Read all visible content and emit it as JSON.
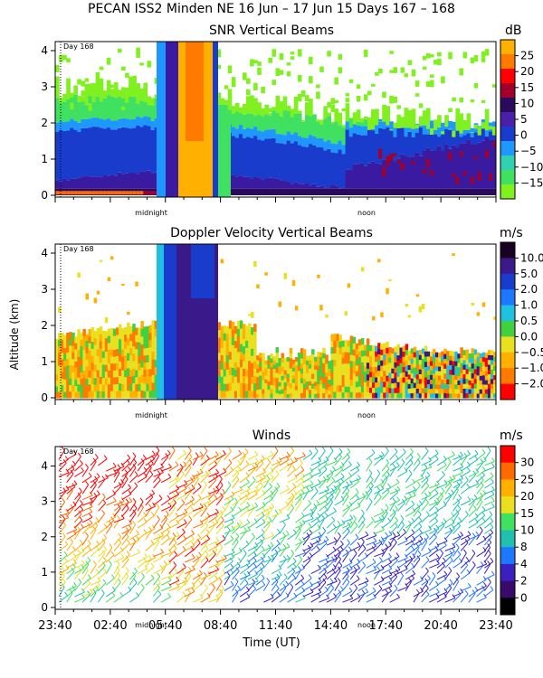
{
  "header": {
    "title": "PECAN ISS2 Minden NE  16 Jun – 17 Jun 15 Days 167 – 168"
  },
  "axes": {
    "ylabel": "Altitude (km)",
    "xlabel": "Time (UT)",
    "ytick_labels": [
      "0",
      "1",
      "2",
      "3",
      "4"
    ],
    "xtick_labels": [
      "23:40",
      "02:40",
      "05:40",
      "08:40",
      "11:40",
      "14:40",
      "17:40",
      "20:40",
      "23:40"
    ],
    "day_marker": "Day 168",
    "midnight_label": "midnight",
    "noon_label": "noon"
  },
  "chart_data": [
    {
      "type": "heatmap",
      "title": "SNR Vertical Beams",
      "colorbar_unit": "dB",
      "colorbar_ticks": [
        "25",
        "20",
        "15",
        "10",
        "5",
        "0",
        "−5",
        "−10",
        "−15"
      ],
      "colorbar_colors": [
        "#ffb000",
        "#ff7a00",
        "#ff0000",
        "#a0002a",
        "#2a0a5a",
        "#4a20a8",
        "#1a3ccc",
        "#1e98ff",
        "#30d0b0",
        "#40e060",
        "#80f020"
      ],
      "xlim": [
        "23:40",
        "23:40"
      ],
      "ylim": [
        0,
        4.2
      ],
      "x_unit": "UT"
    },
    {
      "type": "heatmap",
      "title": "Doppler Velocity Vertical Beams",
      "colorbar_unit": "m/s",
      "colorbar_ticks": [
        "10.0",
        "5.0",
        "2.0",
        "1.0",
        "0.5",
        "0.0",
        "−0.5",
        "−1.0",
        "−2.0"
      ],
      "colorbar_colors": [
        "#1a0020",
        "#3a1a8a",
        "#1a3ccc",
        "#1e78ff",
        "#20c0e0",
        "#40d040",
        "#e8e020",
        "#ffb000",
        "#ff7a00",
        "#ff0000"
      ],
      "xlim": [
        "23:40",
        "23:40"
      ],
      "ylim": [
        0,
        4.2
      ],
      "x_unit": "UT"
    },
    {
      "type": "scatter",
      "title": "Winds",
      "colorbar_unit": "m/s",
      "colorbar_ticks": [
        "30",
        "25",
        "20",
        "15",
        "10",
        "8",
        "4",
        "2",
        "0"
      ],
      "colorbar_colors": [
        "#ff0000",
        "#ff6a00",
        "#ffb000",
        "#e8e020",
        "#40e060",
        "#20c0b0",
        "#1e78ff",
        "#3a20c0",
        "#3a0a6a",
        "#000000"
      ],
      "xlim": [
        "23:40",
        "23:40"
      ],
      "ylim": [
        0,
        4.5
      ],
      "x_unit": "UT"
    }
  ],
  "colors": {
    "frame": "#000000",
    "background": "#ffffff"
  }
}
